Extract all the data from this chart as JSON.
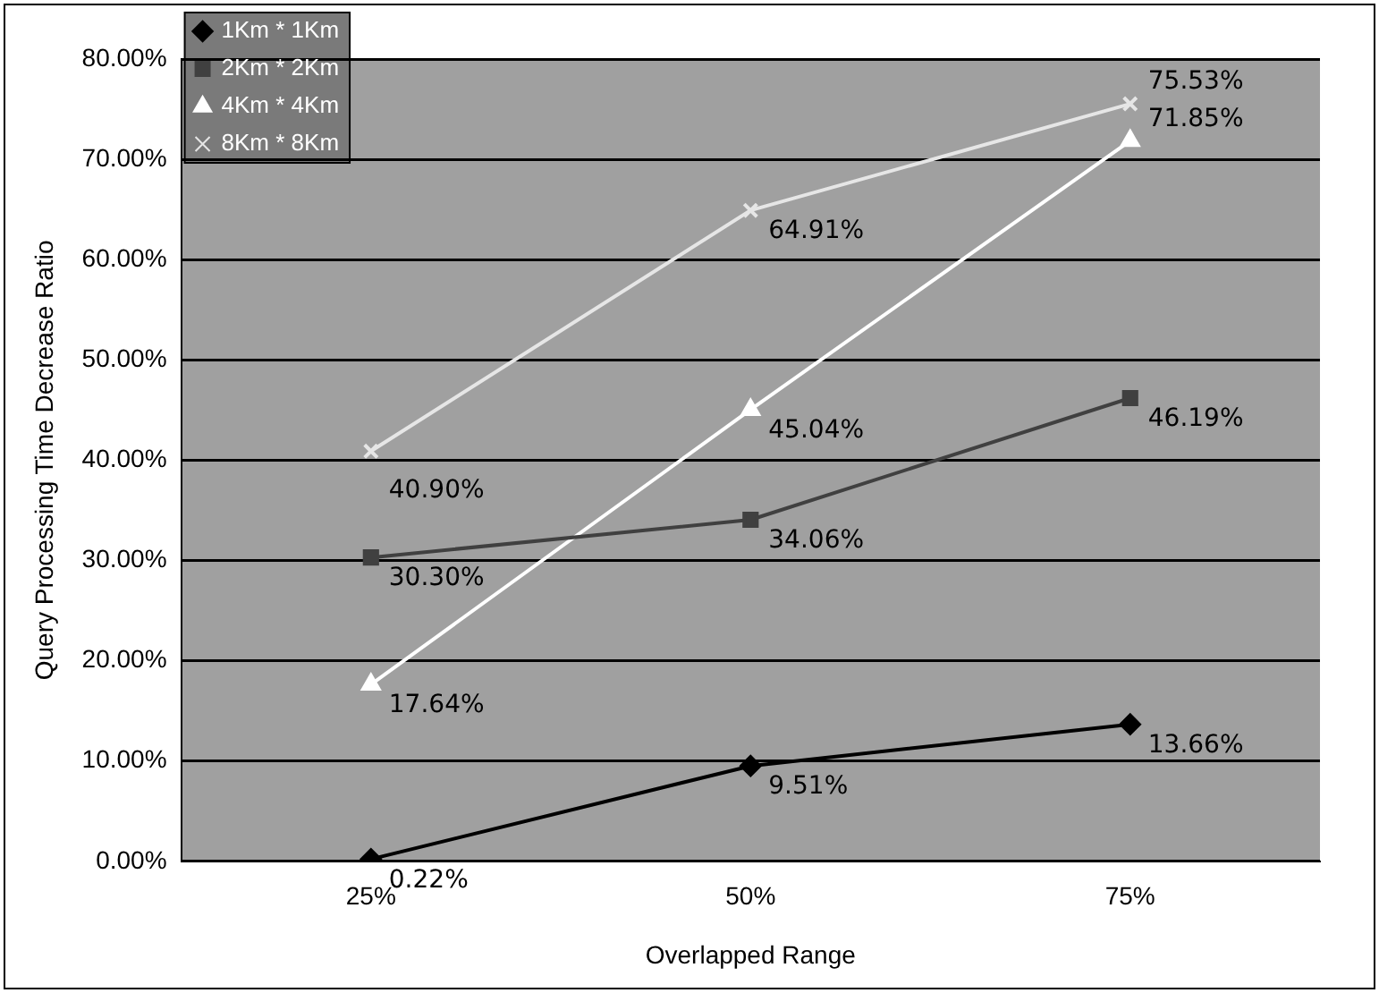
{
  "chart_data": {
    "type": "line",
    "xlabel": "Overlapped Range",
    "ylabel": "Query Processing Time Decrease Ratio",
    "categories": [
      "25%",
      "50%",
      "75%"
    ],
    "series": [
      {
        "name": "1Km * 1Km",
        "color": "#000000",
        "marker": "diamond",
        "values": [
          0.22,
          9.51,
          13.66
        ],
        "value_labels": [
          "0.22%",
          "9.51%",
          "13.66%"
        ]
      },
      {
        "name": "2Km * 2Km",
        "color": "#404040",
        "marker": "square",
        "values": [
          30.3,
          34.06,
          46.19
        ],
        "value_labels": [
          "30.30%",
          "34.06%",
          "46.19%"
        ]
      },
      {
        "name": "4Km * 4Km",
        "color": "#ffffff",
        "marker": "triangle",
        "values": [
          17.64,
          45.04,
          71.85
        ],
        "value_labels": [
          "17.64%",
          "45.04%",
          "71.85%"
        ]
      },
      {
        "name": "8Km * 8Km",
        "color": "#e6e6e6",
        "marker": "cross",
        "values": [
          40.9,
          64.91,
          75.53
        ],
        "value_labels": [
          "40.90%",
          "64.91%",
          "75.53%"
        ]
      }
    ],
    "ylim": [
      0,
      80
    ],
    "yticks": [
      {
        "value": 0,
        "label": "0.00%"
      },
      {
        "value": 10,
        "label": "10.00%"
      },
      {
        "value": 20,
        "label": "20.00%"
      },
      {
        "value": 30,
        "label": "30.00%"
      },
      {
        "value": 40,
        "label": "40.00%"
      },
      {
        "value": 50,
        "label": "50.00%"
      },
      {
        "value": 60,
        "label": "60.00%"
      },
      {
        "value": 70,
        "label": "70.00%"
      },
      {
        "value": 80,
        "label": "80.00%"
      }
    ],
    "grid": "y",
    "legend": "top left"
  }
}
